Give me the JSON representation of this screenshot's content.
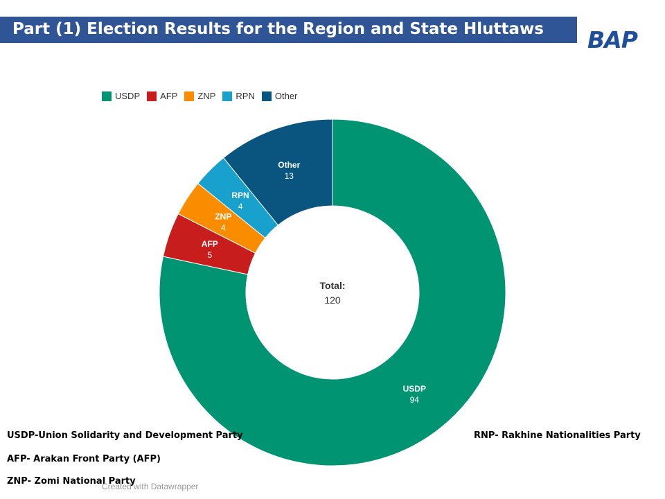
{
  "title": "Part (1) Election Results for the Region and State Hluttaws",
  "logo": "BAP",
  "chart_data": {
    "type": "pie",
    "variant": "donut",
    "categories": [
      "USDP",
      "AFP",
      "ZNP",
      "RPN",
      "Other"
    ],
    "values": [
      94,
      5,
      4,
      4,
      13
    ],
    "colors": [
      "#009473",
      "#c71e1d",
      "#fa8c00",
      "#18a1cd",
      "#09557f"
    ],
    "center_label": "Total:",
    "center_value": "120",
    "legend_placement": "top-left"
  },
  "notes": [
    "USDP-Union Solidarity and Development Party",
    "AFP- Arakan Front Party (AFP)",
    "ZNP- Zomi National Party",
    "RNP- Rakhine Nationalities Party"
  ],
  "credit": "Created with Datawrapper"
}
